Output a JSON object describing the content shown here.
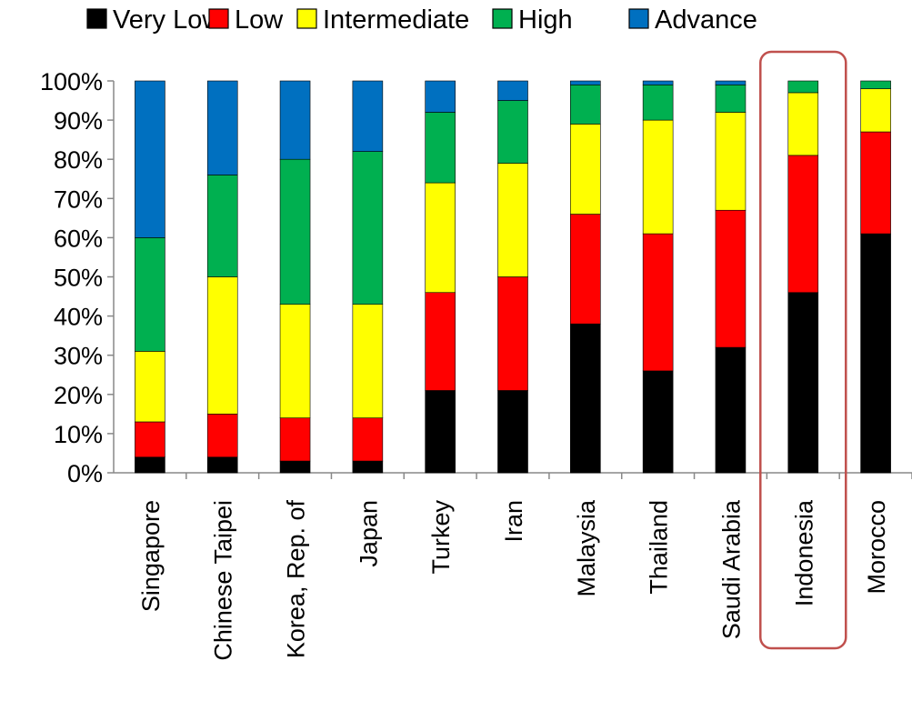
{
  "chart_data": {
    "type": "bar",
    "stacked": true,
    "percent_stacked": true,
    "categories": [
      "Singapore",
      "Chinese Taipei",
      "Korea, Rep. of",
      "Japan",
      "Turkey",
      "Iran",
      "Malaysia",
      "Thailand",
      "Saudi Arabia",
      "Indonesia",
      "Morocco"
    ],
    "series": [
      {
        "name": "Very Low",
        "color": "#000000",
        "values": [
          4,
          4,
          3,
          3,
          21,
          21,
          38,
          26,
          32,
          46,
          61
        ]
      },
      {
        "name": "Low",
        "color": "#ff0000",
        "values": [
          9,
          11,
          11,
          11,
          25,
          29,
          28,
          35,
          35,
          35,
          26
        ]
      },
      {
        "name": "Intermediate",
        "color": "#ffff00",
        "values": [
          18,
          35,
          29,
          29,
          28,
          29,
          23,
          29,
          25,
          16,
          11
        ]
      },
      {
        "name": "High",
        "color": "#00b050",
        "values": [
          29,
          26,
          37,
          39,
          18,
          16,
          10,
          9,
          7,
          3,
          2
        ]
      },
      {
        "name": "Advance",
        "color": "#0070c0",
        "values": [
          40,
          24,
          20,
          18,
          8,
          5,
          1,
          1,
          1,
          0,
          0
        ]
      }
    ],
    "y_ticks": [
      "0%",
      "10%",
      "20%",
      "30%",
      "40%",
      "50%",
      "60%",
      "70%",
      "80%",
      "90%",
      "100%"
    ],
    "ylim": [
      0,
      100
    ],
    "grid": false,
    "legend_position": "top",
    "highlight": {
      "category": "Indonesia",
      "color": "#c0504d"
    }
  }
}
